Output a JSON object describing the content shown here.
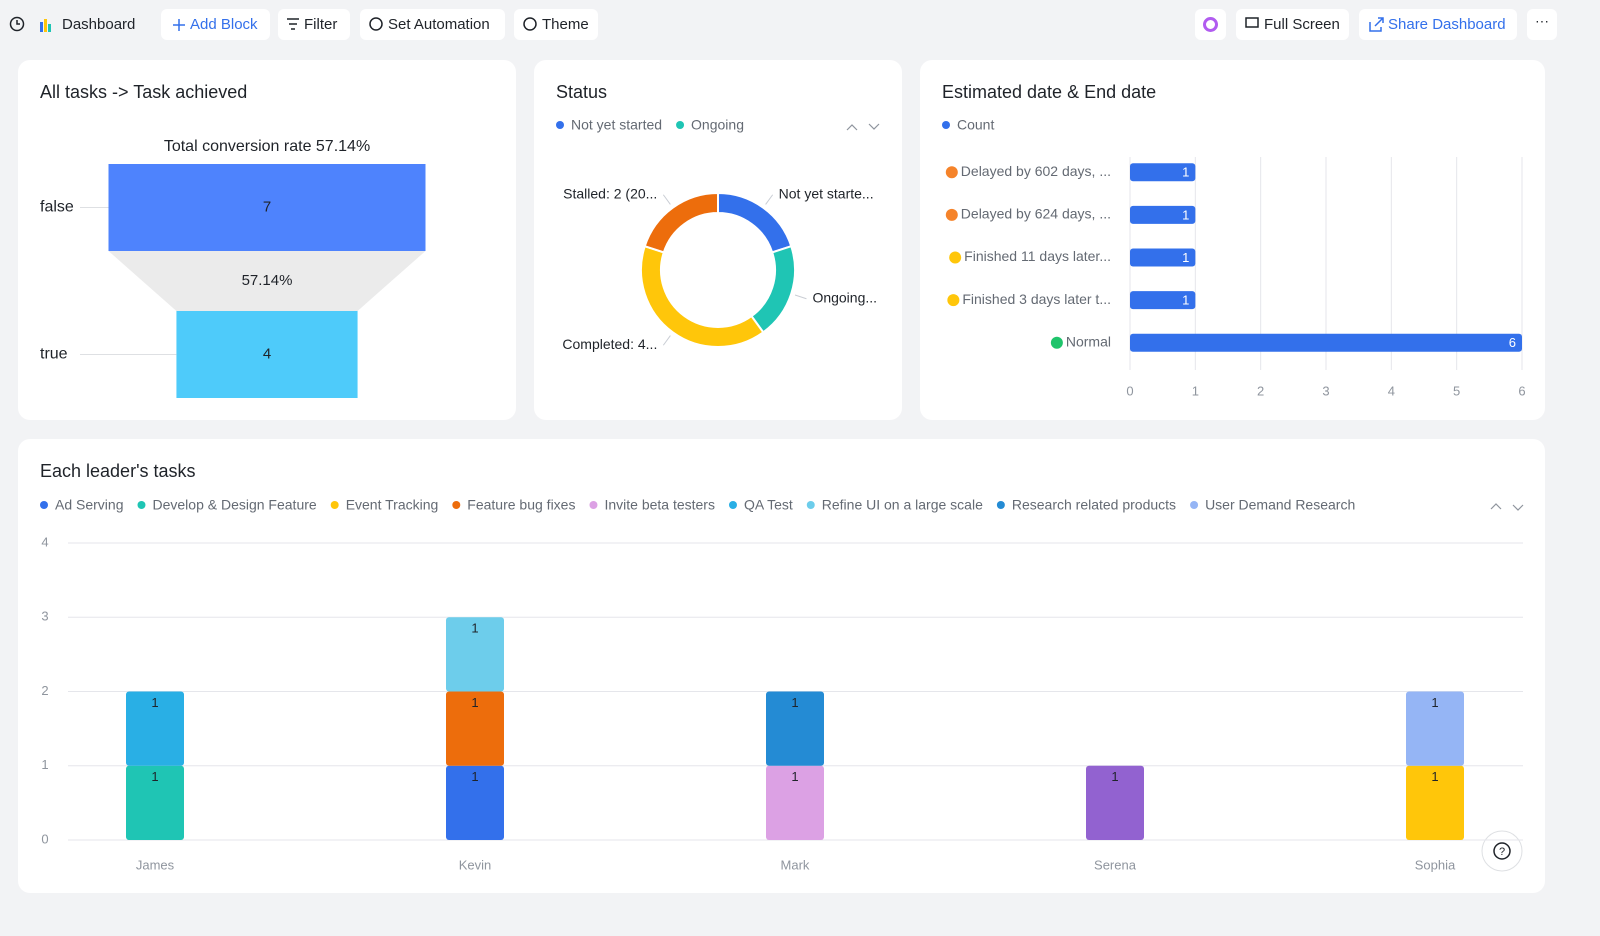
{
  "toolbar": {
    "left": [
      "Dashboard",
      "Add Block",
      "Filter",
      "Set Automation",
      "Theme"
    ],
    "right": [
      "Full Screen",
      "Share Dashboard"
    ]
  },
  "chart_data": [
    {
      "type": "funnel",
      "title": "All tasks -> Task achieved",
      "subtitle": "Total conversion rate 57.14%",
      "categories": [
        "false",
        "true"
      ],
      "values": [
        7,
        4
      ],
      "colors": [
        "#4e83fd",
        "#4ecbfa"
      ],
      "stage_conversions": [
        "57.14%"
      ]
    },
    {
      "type": "donut",
      "title": "Status",
      "categories": [
        "Not yet started",
        "Ongoing",
        "Completed",
        "Stalled"
      ],
      "values": [
        2,
        2,
        4,
        2
      ],
      "value_labels": [
        "Not yet starte...",
        "Ongoing...",
        "Completed: 4...",
        "Stalled: 2 (20..."
      ],
      "colors": [
        "#3370eb",
        "#1fc5b4",
        "#ffc60a",
        "#ed6d0c"
      ]
    },
    {
      "type": "bar",
      "orientation": "horizontal",
      "title": "Estimated date & End date",
      "categories": [
        "Delayed by 602 days, ...",
        "Delayed by 624 days, ...",
        "Finished 11 days later...",
        "Finished 3 days later t...",
        "Normal"
      ],
      "icon_colors": [
        "#f5832a",
        "#f5832a",
        "#ffc60a",
        "#ffc60a",
        "#1fc46b"
      ],
      "series": [
        {
          "name": "Count",
          "color": "#3370eb",
          "values": [
            1,
            1,
            1,
            1,
            6
          ]
        }
      ],
      "xlim": [
        0,
        6
      ],
      "xticks": [
        0,
        1,
        2,
        3,
        4,
        5,
        6
      ],
      "grid": true
    },
    {
      "type": "bar",
      "stacked": true,
      "title": "Each leader's tasks",
      "categories": [
        "James",
        "Kevin",
        "Mark",
        "Serena",
        "Sophia"
      ],
      "series": [
        {
          "name": "Ad Serving",
          "color": "#3370eb",
          "values": [
            null,
            1,
            null,
            null,
            null
          ]
        },
        {
          "name": "Develop & Design Feature",
          "color": "#1fc5b4",
          "values": [
            1,
            null,
            null,
            null,
            null
          ]
        },
        {
          "name": "Event Tracking",
          "color": "#ffc60a",
          "values": [
            null,
            null,
            null,
            null,
            1
          ]
        },
        {
          "name": "Feature bug fixes",
          "color": "#ed6d0c",
          "values": [
            null,
            1,
            null,
            null,
            null
          ]
        },
        {
          "name": "Invite beta testers",
          "color": "#dca1e4",
          "values": [
            null,
            null,
            1,
            null,
            null
          ]
        },
        {
          "name": "QA Test",
          "color": "#29afe5",
          "values": [
            1,
            null,
            null,
            null,
            null
          ]
        },
        {
          "name": "Refine UI on a large scale",
          "color": "#6dcdeb",
          "values": [
            null,
            1,
            null,
            null,
            null
          ]
        },
        {
          "name": "Research related products",
          "color": "#248bd4",
          "values": [
            null,
            null,
            1,
            null,
            null
          ]
        },
        {
          "name": "User Demand Research",
          "color": "#95b5f5",
          "values": [
            null,
            null,
            null,
            null,
            1
          ]
        },
        {
          "color": "#9262d0",
          "values": [
            null,
            null,
            null,
            1,
            null
          ]
        }
      ],
      "ylim": [
        0,
        4
      ],
      "yticks": [
        0,
        1,
        2,
        3,
        4
      ],
      "grid": true
    }
  ]
}
